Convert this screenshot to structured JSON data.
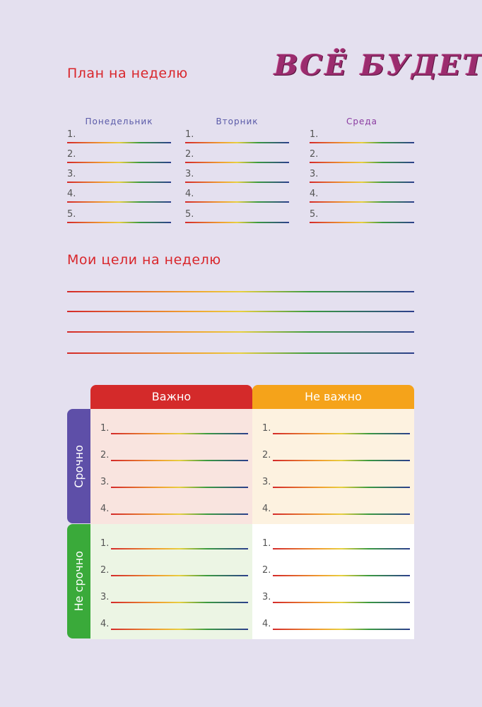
{
  "logo": "ВСЁ БУДЕТ",
  "plan": {
    "title": "План на неделю",
    "days": [
      {
        "name": "Понедельник",
        "color": "#5a5aa8"
      },
      {
        "name": "Вторник",
        "color": "#5a5aa8"
      },
      {
        "name": "Среда",
        "color": "#8a3aa0"
      }
    ],
    "numbers": [
      "1.",
      "2.",
      "3.",
      "4.",
      "5."
    ]
  },
  "goals": {
    "title": "Мои цели на неделю"
  },
  "matrix": {
    "columns": [
      {
        "label": "Важно",
        "color": "#d42a2a"
      },
      {
        "label": "Не важно",
        "color": "#f5a31a"
      }
    ],
    "rows": [
      {
        "label": "Срочно",
        "color": "#5e4fa8"
      },
      {
        "label": "Не срочно",
        "color": "#3aaa3a"
      }
    ],
    "cell_colors": [
      "#f9e4df",
      "#fdf2e0",
      "#ecf5e4",
      "#ffffff"
    ],
    "numbers": [
      "1.",
      "2.",
      "3.",
      "4."
    ]
  }
}
